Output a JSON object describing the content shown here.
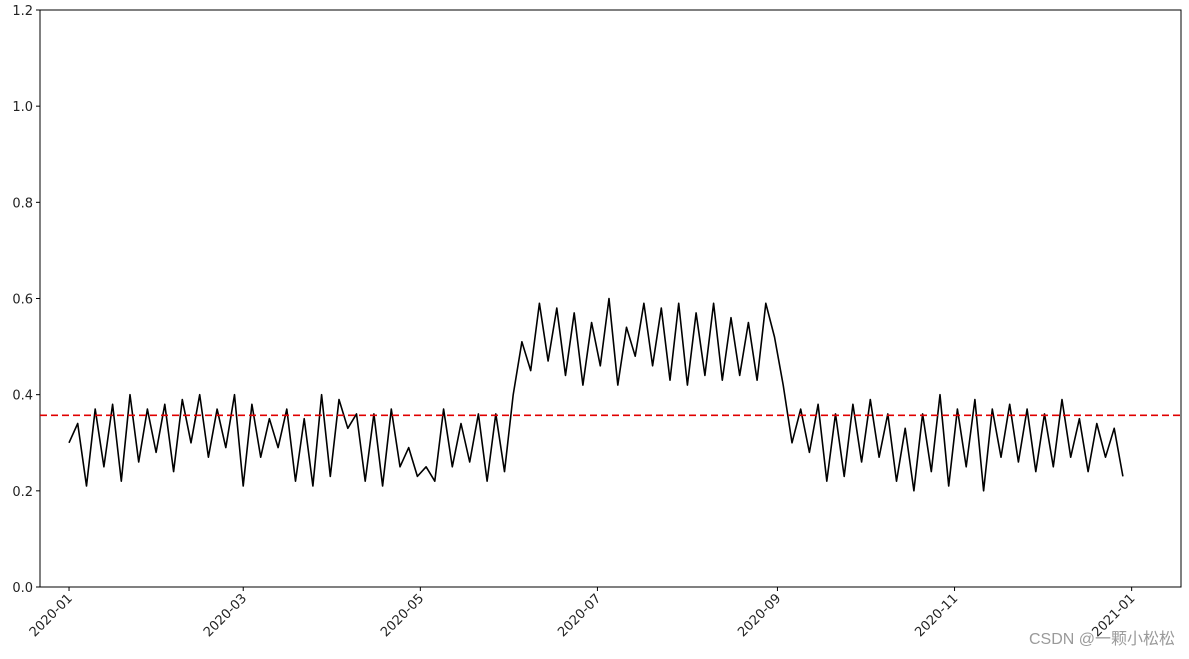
{
  "chart_data": {
    "type": "line",
    "title": "",
    "xlabel": "",
    "ylabel": "",
    "ylim": [
      0,
      1.2
    ],
    "xlim": [
      "2019-12-22",
      "2021-01-18"
    ],
    "grid": false,
    "y_ticks": [
      0.0,
      0.2,
      0.4,
      0.6,
      0.8,
      1.0,
      1.2
    ],
    "y_tick_labels": [
      "0.0",
      "0.2",
      "0.4",
      "0.6",
      "0.8",
      "1.0",
      "1.2"
    ],
    "x_ticks": [
      "2020-01-01",
      "2020-03-01",
      "2020-05-01",
      "2020-07-01",
      "2020-09-01",
      "2020-11-01",
      "2021-01-01"
    ],
    "x_tick_labels": [
      "2020-01",
      "2020-03",
      "2020-05",
      "2020-07",
      "2020-09",
      "2020-11",
      "2021-01"
    ],
    "series": [
      {
        "color": "#000000",
        "x": [
          "2020-01-01",
          "2020-01-04",
          "2020-01-07",
          "2020-01-10",
          "2020-01-13",
          "2020-01-16",
          "2020-01-19",
          "2020-01-22",
          "2020-01-25",
          "2020-01-28",
          "2020-01-31",
          "2020-02-03",
          "2020-02-06",
          "2020-02-09",
          "2020-02-12",
          "2020-02-15",
          "2020-02-18",
          "2020-02-21",
          "2020-02-24",
          "2020-02-27",
          "2020-03-01",
          "2020-03-04",
          "2020-03-07",
          "2020-03-10",
          "2020-03-13",
          "2020-03-16",
          "2020-03-19",
          "2020-03-22",
          "2020-03-25",
          "2020-03-28",
          "2020-03-31",
          "2020-04-03",
          "2020-04-06",
          "2020-04-09",
          "2020-04-12",
          "2020-04-15",
          "2020-04-18",
          "2020-04-21",
          "2020-04-24",
          "2020-04-27",
          "2020-04-30",
          "2020-05-03",
          "2020-05-06",
          "2020-05-09",
          "2020-05-12",
          "2020-05-15",
          "2020-05-18",
          "2020-05-21",
          "2020-05-24",
          "2020-05-27",
          "2020-05-30",
          "2020-06-02",
          "2020-06-05",
          "2020-06-08",
          "2020-06-11",
          "2020-06-14",
          "2020-06-17",
          "2020-06-20",
          "2020-06-23",
          "2020-06-26",
          "2020-06-29",
          "2020-07-02",
          "2020-07-05",
          "2020-07-08",
          "2020-07-11",
          "2020-07-14",
          "2020-07-17",
          "2020-07-20",
          "2020-07-23",
          "2020-07-26",
          "2020-07-29",
          "2020-08-01",
          "2020-08-04",
          "2020-08-07",
          "2020-08-10",
          "2020-08-13",
          "2020-08-16",
          "2020-08-19",
          "2020-08-22",
          "2020-08-25",
          "2020-08-28",
          "2020-08-31",
          "2020-09-03",
          "2020-09-06",
          "2020-09-09",
          "2020-09-12",
          "2020-09-15",
          "2020-09-18",
          "2020-09-21",
          "2020-09-24",
          "2020-09-27",
          "2020-09-30",
          "2020-10-03",
          "2020-10-06",
          "2020-10-09",
          "2020-10-12",
          "2020-10-15",
          "2020-10-18",
          "2020-10-21",
          "2020-10-24",
          "2020-10-27",
          "2020-10-30",
          "2020-11-02",
          "2020-11-05",
          "2020-11-08",
          "2020-11-11",
          "2020-11-14",
          "2020-11-17",
          "2020-11-20",
          "2020-11-23",
          "2020-11-26",
          "2020-11-29",
          "2020-12-02",
          "2020-12-05",
          "2020-12-08",
          "2020-12-11",
          "2020-12-14",
          "2020-12-17",
          "2020-12-20",
          "2020-12-23",
          "2020-12-26",
          "2020-12-29"
        ],
        "values": [
          0.3,
          0.34,
          0.21,
          0.37,
          0.25,
          0.38,
          0.22,
          0.4,
          0.26,
          0.37,
          0.28,
          0.38,
          0.24,
          0.39,
          0.3,
          0.4,
          0.27,
          0.37,
          0.29,
          0.4,
          0.21,
          0.38,
          0.27,
          0.35,
          0.29,
          0.37,
          0.22,
          0.35,
          0.21,
          0.4,
          0.23,
          0.39,
          0.33,
          0.36,
          0.22,
          0.36,
          0.21,
          0.37,
          0.25,
          0.29,
          0.23,
          0.25,
          0.22,
          0.37,
          0.25,
          0.34,
          0.26,
          0.36,
          0.22,
          0.36,
          0.24,
          0.4,
          0.51,
          0.45,
          0.59,
          0.47,
          0.58,
          0.44,
          0.57,
          0.42,
          0.55,
          0.46,
          0.6,
          0.42,
          0.54,
          0.48,
          0.59,
          0.46,
          0.58,
          0.43,
          0.59,
          0.42,
          0.57,
          0.44,
          0.59,
          0.43,
          0.56,
          0.44,
          0.55,
          0.43,
          0.59,
          0.52,
          0.42,
          0.3,
          0.37,
          0.28,
          0.38,
          0.22,
          0.36,
          0.23,
          0.38,
          0.26,
          0.39,
          0.27,
          0.36,
          0.22,
          0.33,
          0.2,
          0.36,
          0.24,
          0.4,
          0.21,
          0.37,
          0.25,
          0.39,
          0.2,
          0.37,
          0.27,
          0.38,
          0.26,
          0.37,
          0.24,
          0.36,
          0.25,
          0.39,
          0.27,
          0.35,
          0.24,
          0.34,
          0.27,
          0.33,
          0.23
        ]
      }
    ],
    "reference_line": {
      "y": 0.357,
      "color": "#e00000",
      "style": "dashed"
    }
  },
  "watermark": "CSDN @一颗小松松"
}
